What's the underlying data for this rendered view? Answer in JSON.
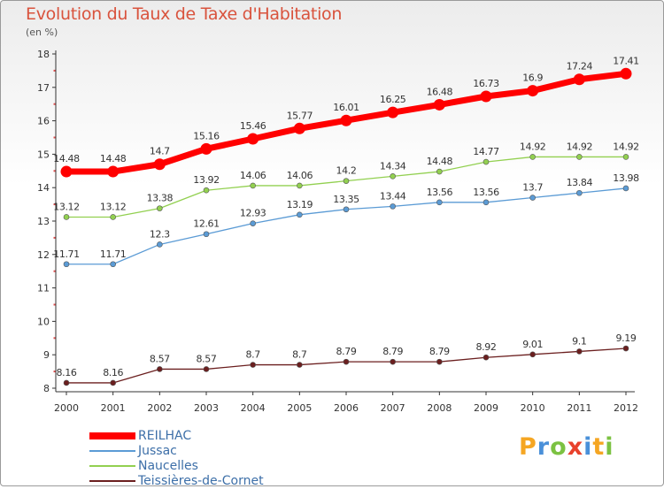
{
  "chart_data": {
    "type": "line",
    "title": "Evolution du Taux de Taxe d'Habitation",
    "subtitle": "(en %)",
    "categories": [
      "2000",
      "2001",
      "2002",
      "2003",
      "2004",
      "2005",
      "2006",
      "2007",
      "2008",
      "2009",
      "2010",
      "2011",
      "2012"
    ],
    "ylim": [
      8,
      18
    ],
    "yticks": [
      8,
      9,
      10,
      11,
      12,
      13,
      14,
      15,
      16,
      17,
      18
    ],
    "grid": false,
    "legend_position": "bottom-left",
    "series": [
      {
        "name": "REILHAC",
        "color": "#ff0000",
        "values": [
          14.48,
          14.48,
          14.7,
          15.16,
          15.46,
          15.77,
          16.01,
          16.25,
          16.48,
          16.73,
          16.9,
          17.24,
          17.41
        ]
      },
      {
        "name": "Jussac",
        "color": "#5b9bd5",
        "values": [
          11.71,
          11.71,
          12.3,
          12.61,
          12.93,
          13.19,
          13.35,
          13.44,
          13.56,
          13.56,
          13.7,
          13.84,
          13.98
        ]
      },
      {
        "name": "Naucelles",
        "color": "#92d050",
        "values": [
          13.12,
          13.12,
          13.38,
          13.92,
          14.06,
          14.06,
          14.2,
          14.34,
          14.48,
          14.77,
          14.92,
          14.92,
          14.92
        ]
      },
      {
        "name": "Teissières-de-Cornet",
        "color": "#6b1f1f",
        "values": [
          8.16,
          8.16,
          8.57,
          8.57,
          8.7,
          8.7,
          8.79,
          8.79,
          8.79,
          8.92,
          9.01,
          9.1,
          9.19
        ]
      }
    ],
    "data_labels": [
      [
        "14.48",
        "14.48",
        "14.7",
        "15.16",
        "15.46",
        "15.77",
        "16.01",
        "16.25",
        "16.48",
        "16.73",
        "16.9",
        "17.24",
        "17.41"
      ],
      [
        "11.71",
        "11.71",
        "12.3",
        "12.61",
        "12.93",
        "13.19",
        "13.35",
        "13.44",
        "13.56",
        "13.56",
        "13.7",
        "13.84",
        "13.98"
      ],
      [
        "13.12",
        "13.12",
        "13.38",
        "13.92",
        "14.06",
        "14.06",
        "14.2",
        "14.34",
        "14.48",
        "14.77",
        "14.92",
        "14.92",
        "14.92"
      ],
      [
        "8.16",
        "8.16",
        "8.57",
        "8.57",
        "8.7",
        "8.7",
        "8.79",
        "8.79",
        "8.79",
        "8.92",
        "9.01",
        "9.1",
        "9.19"
      ]
    ]
  },
  "brand": {
    "letters": [
      "P",
      "r",
      "o",
      "x",
      "i",
      "t",
      "i"
    ],
    "colors": [
      "#f5a623",
      "#4a90d9",
      "#7cc242",
      "#e8412c",
      "#4a90d9",
      "#f5a623",
      "#7cc242"
    ]
  }
}
